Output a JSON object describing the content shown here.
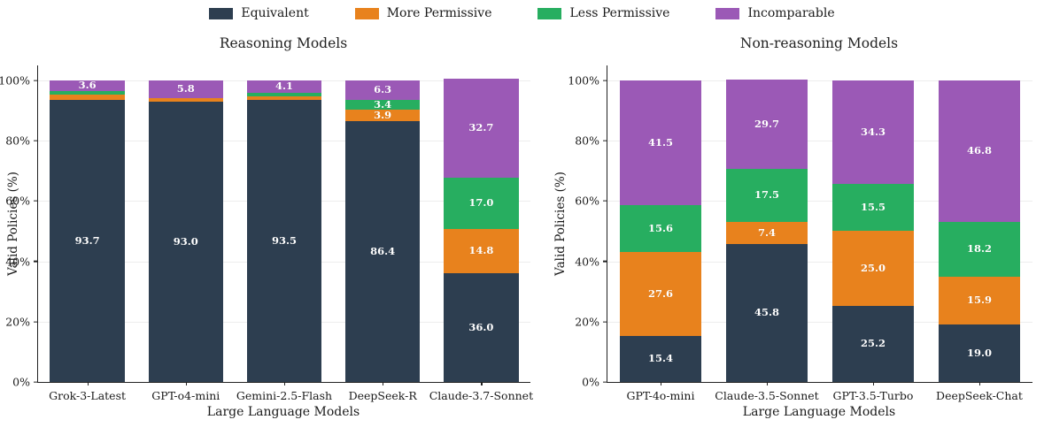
{
  "legend": {
    "items": [
      {
        "label": "Equivalent",
        "color": "#2d3e50"
      },
      {
        "label": "More Permissive",
        "color": "#e8821d"
      },
      {
        "label": "Less Permissive",
        "color": "#27ae60"
      },
      {
        "label": "Incomparable",
        "color": "#9b59b6"
      }
    ]
  },
  "chart_data": [
    {
      "type": "bar",
      "stacked": true,
      "title": "Reasoning Models",
      "xlabel": "Large Language Models",
      "ylabel": "Valid Policies (%)",
      "ylim": [
        0,
        105
      ],
      "grid": true,
      "yticks": [
        {
          "value": 0,
          "label": "0%"
        },
        {
          "value": 20,
          "label": "20%"
        },
        {
          "value": 40,
          "label": "40%"
        },
        {
          "value": 60,
          "label": "60%"
        },
        {
          "value": 80,
          "label": "80%"
        },
        {
          "value": 100,
          "label": "100%"
        }
      ],
      "categories": [
        "Grok-3-Latest",
        "GPT-o4-mini",
        "Gemini-2.5-Flash",
        "DeepSeek-R",
        "Claude-3.7-Sonnet"
      ],
      "series": [
        {
          "name": "Equivalent",
          "color": "#2d3e50",
          "values": [
            93.7,
            93.0,
            93.5,
            86.4,
            36.0
          ],
          "labels": [
            "93.7",
            "93.0",
            "93.5",
            "86.4",
            "36.0"
          ]
        },
        {
          "name": "More Permissive",
          "color": "#e8821d",
          "values": [
            1.5,
            1.2,
            1.2,
            3.9,
            14.8
          ],
          "labels": [
            "",
            "",
            "",
            "3.9",
            "14.8"
          ]
        },
        {
          "name": "Less Permissive",
          "color": "#27ae60",
          "values": [
            1.2,
            0.0,
            1.2,
            3.4,
            17.0
          ],
          "labels": [
            "",
            "",
            "",
            "3.4",
            "17.0"
          ]
        },
        {
          "name": "Incomparable",
          "color": "#9b59b6",
          "values": [
            3.6,
            5.8,
            4.1,
            6.3,
            32.7
          ],
          "labels": [
            "3.6",
            "5.8",
            "4.1",
            "6.3",
            "32.7"
          ]
        }
      ]
    },
    {
      "type": "bar",
      "stacked": true,
      "title": "Non-reasoning Models",
      "xlabel": "Large Language Models",
      "ylabel": "Valid Policies (%)",
      "ylim": [
        0,
        105
      ],
      "grid": true,
      "yticks": [
        {
          "value": 0,
          "label": "0%"
        },
        {
          "value": 20,
          "label": "20%"
        },
        {
          "value": 40,
          "label": "40%"
        },
        {
          "value": 60,
          "label": "60%"
        },
        {
          "value": 80,
          "label": "80%"
        },
        {
          "value": 100,
          "label": "100%"
        }
      ],
      "categories": [
        "GPT-4o-mini",
        "Claude-3.5-Sonnet",
        "GPT-3.5-Turbo",
        "DeepSeek-Chat"
      ],
      "series": [
        {
          "name": "Equivalent",
          "color": "#2d3e50",
          "values": [
            15.4,
            45.8,
            25.2,
            19.0
          ],
          "labels": [
            "15.4",
            "45.8",
            "25.2",
            "19.0"
          ]
        },
        {
          "name": "More Permissive",
          "color": "#e8821d",
          "values": [
            27.6,
            7.4,
            25.0,
            15.9
          ],
          "labels": [
            "27.6",
            "7.4",
            "25.0",
            "15.9"
          ]
        },
        {
          "name": "Less Permissive",
          "color": "#27ae60",
          "values": [
            15.6,
            17.5,
            15.5,
            18.2
          ],
          "labels": [
            "15.6",
            "17.5",
            "15.5",
            "18.2"
          ]
        },
        {
          "name": "Incomparable",
          "color": "#9b59b6",
          "values": [
            41.5,
            29.7,
            34.3,
            46.8
          ],
          "labels": [
            "41.5",
            "29.7",
            "34.3",
            "46.8"
          ]
        }
      ]
    }
  ]
}
